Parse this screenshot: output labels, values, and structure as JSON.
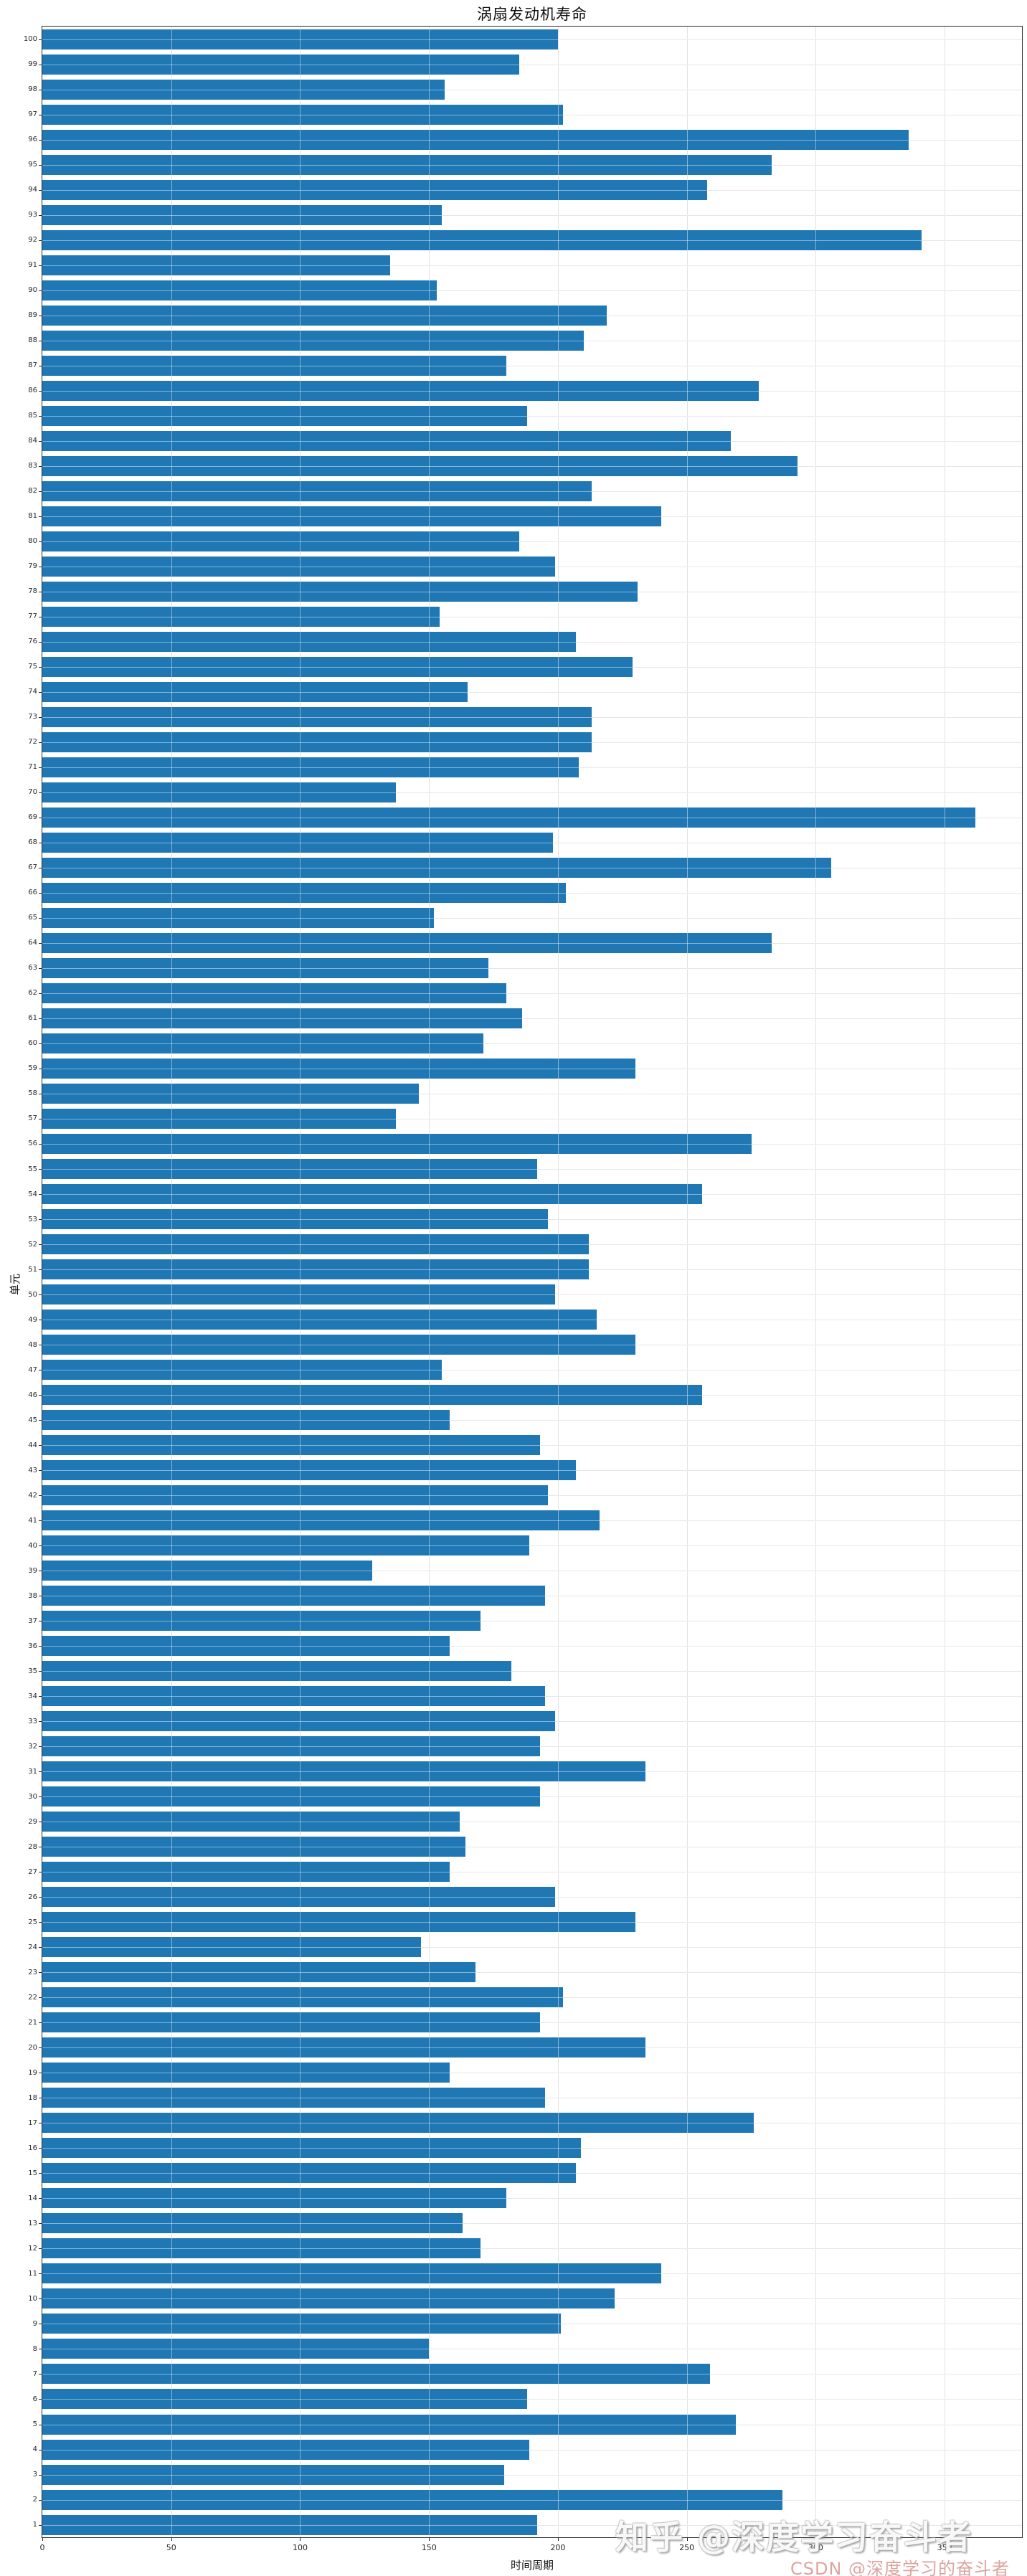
{
  "title": "涡扇发动机寿命",
  "chart_data": {
    "type": "bar",
    "orientation": "horizontal",
    "title": "涡扇发动机寿命",
    "xlabel": "时间周期",
    "ylabel": "单元",
    "xlim": [
      0,
      380
    ],
    "x_ticks": [
      0,
      50,
      100,
      150,
      200,
      250,
      300,
      350
    ],
    "grid": true,
    "legend": "none",
    "bar_color": "#1f77b4",
    "categories": [
      1,
      2,
      3,
      4,
      5,
      6,
      7,
      8,
      9,
      10,
      11,
      12,
      13,
      14,
      15,
      16,
      17,
      18,
      19,
      20,
      21,
      22,
      23,
      24,
      25,
      26,
      27,
      28,
      29,
      30,
      31,
      32,
      33,
      34,
      35,
      36,
      37,
      38,
      39,
      40,
      41,
      42,
      43,
      44,
      45,
      46,
      47,
      48,
      49,
      50,
      51,
      52,
      53,
      54,
      55,
      56,
      57,
      58,
      59,
      60,
      61,
      62,
      63,
      64,
      65,
      66,
      67,
      68,
      69,
      70,
      71,
      72,
      73,
      74,
      75,
      76,
      77,
      78,
      79,
      80,
      81,
      82,
      83,
      84,
      85,
      86,
      87,
      88,
      89,
      90,
      91,
      92,
      93,
      94,
      95,
      96,
      97,
      98,
      99,
      100
    ],
    "values": [
      192,
      287,
      179,
      189,
      269,
      188,
      259,
      150,
      201,
      222,
      240,
      170,
      163,
      180,
      207,
      209,
      276,
      195,
      158,
      234,
      193,
      202,
      168,
      147,
      230,
      199,
      158,
      164,
      162,
      193,
      234,
      193,
      199,
      195,
      182,
      158,
      170,
      195,
      128,
      189,
      216,
      196,
      207,
      193,
      158,
      256,
      155,
      230,
      215,
      199,
      212,
      212,
      196,
      256,
      192,
      275,
      137,
      146,
      230,
      171,
      186,
      180,
      173,
      283,
      152,
      203,
      306,
      198,
      362,
      137,
      208,
      213,
      213,
      165,
      229,
      207,
      154,
      231,
      199,
      185,
      240,
      213,
      293,
      267,
      188,
      278,
      180,
      210,
      219,
      153,
      135,
      341,
      155,
      258,
      283,
      336,
      202,
      156,
      185,
      200
    ],
    "y_tick_labels": [
      "1",
      "2",
      "3",
      "4",
      "5",
      "6",
      "7",
      "8",
      "9",
      "10",
      "11",
      "12",
      "13",
      "14",
      "15",
      "16",
      "17",
      "18",
      "19",
      "20",
      "21",
      "22",
      "23",
      "24",
      "25",
      "26",
      "27",
      "28",
      "29",
      "30",
      "31",
      "32",
      "33",
      "34",
      "35",
      "36",
      "37",
      "38",
      "39",
      "40",
      "41",
      "42",
      "43",
      "44",
      "45",
      "46",
      "47",
      "48",
      "49",
      "50",
      "51",
      "52",
      "53",
      "54",
      "55",
      "56",
      "57",
      "58",
      "59",
      "60",
      "61",
      "62",
      "63",
      "64",
      "65",
      "66",
      "67",
      "68",
      "69",
      "70",
      "71",
      "72",
      "73",
      "74",
      "75",
      "76",
      "77",
      "78",
      "79",
      "80",
      "81",
      "82",
      "83",
      "84",
      "85",
      "86",
      "87",
      "88",
      "89",
      "90",
      "91",
      "92",
      "93",
      "94",
      "95",
      "96",
      "97",
      "98",
      "99",
      "100"
    ]
  },
  "watermarks": {
    "zhihu": "知乎 @深度学习奋斗者",
    "csdn": "CSDN @深度学习的奋斗者"
  }
}
